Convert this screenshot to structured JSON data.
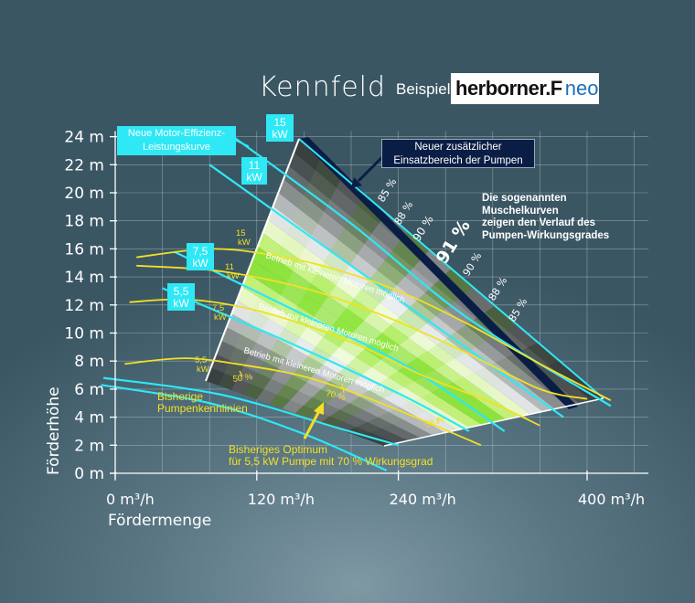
{
  "header": {
    "title": "Kennfeld",
    "subtitle": "Beispiel",
    "brand_main": "herborner.F",
    "brand_neo": "neo",
    "brand_colors": {
      "main": "#111111",
      "F": "#e2231a",
      "neo": "#1d6fb8"
    }
  },
  "chart_data": {
    "type": "line",
    "xlabel": "Fördermenge",
    "ylabel": "Förderhöhe",
    "x_unit": "m³/h",
    "y_unit": "m",
    "xlim": [
      0,
      420
    ],
    "ylim": [
      0,
      24
    ],
    "x_ticks": [
      0,
      120,
      240,
      400
    ],
    "x_tick_labels": [
      "0 m³/h",
      "120 m³/h",
      "240 m³/h",
      "400 m³/h"
    ],
    "y_ticks": [
      0,
      2,
      4,
      6,
      8,
      10,
      12,
      14,
      16,
      18,
      20,
      22,
      24
    ],
    "y_tick_labels": [
      "0 m",
      "2 m",
      "4 m",
      "6 m",
      "8 m",
      "10 m",
      "12 m",
      "14 m",
      "16 m",
      "18 m",
      "20 m",
      "22 m",
      "24 m"
    ],
    "grid": true,
    "colors": {
      "cyan": "#2ee8f5",
      "yellow": "#f2e025",
      "navy": "#0a1e45",
      "green": "#7ce632"
    },
    "efficiency_scale_low_to_high": [
      "#3a3f40",
      "#4b5153",
      "#646a6c",
      "#888d8e",
      "#b4b8b8",
      "#e0e4e4",
      "#e8f7c8",
      "#c2f07a",
      "#8ee23e"
    ],
    "bands": [
      {
        "x_left": [
          219,
          190,
          161,
          134,
          107,
          86
        ],
        "y_left": [
          24,
          20.5,
          17,
          14,
          11.5,
          9
        ],
        "x_right": [
          473,
          445,
          420,
          390,
          368,
          340
        ],
        "y_right": [
          5.6,
          5.3,
          5.1,
          4.8,
          4.5,
          4.2
        ],
        "stripes": [
          0,
          1,
          2,
          3,
          4,
          5,
          6,
          7,
          8,
          8,
          7,
          6,
          5,
          4,
          3,
          2,
          1,
          0
        ]
      }
    ],
    "series": [
      {
        "name": "15 kW",
        "x": [
          18,
          80,
          130,
          180,
          240,
          300,
          360,
          420
        ],
        "y": [
          15.4,
          16.0,
          15.6,
          14.7,
          13.0,
          10.6,
          7.8,
          5.2
        ]
      },
      {
        "name": "11 kW",
        "x": [
          18,
          80,
          130,
          180,
          240,
          300,
          360,
          400
        ],
        "y": [
          14.8,
          14.5,
          13.8,
          12.7,
          10.8,
          8.5,
          6.0,
          5.3
        ]
      },
      {
        "name": "7,5 kW",
        "x": [
          12,
          60,
          110,
          160,
          210,
          260,
          320,
          360
        ],
        "y": [
          12.2,
          12.4,
          11.8,
          10.6,
          9.0,
          7.0,
          5.0,
          3.4
        ]
      },
      {
        "name": "5,5 kW",
        "x": [
          8,
          60,
          110,
          160,
          210,
          260,
          310
        ],
        "y": [
          7.8,
          8.2,
          7.7,
          6.9,
          5.5,
          3.8,
          2.0
        ]
      }
    ],
    "cyan_curves": [
      {
        "x": [
          100,
          200,
          300,
          420
        ],
        "y": [
          24,
          17.8,
          11.0,
          4.8
        ]
      },
      {
        "x": [
          80,
          180,
          280,
          380
        ],
        "y": [
          22,
          16.0,
          10.0,
          4.0
        ]
      },
      {
        "x": [
          50,
          150,
          250,
          330
        ],
        "y": [
          15.8,
          11.7,
          7.5,
          3.0
        ]
      },
      {
        "x": [
          40,
          140,
          240,
          300
        ],
        "y": [
          13.2,
          9.6,
          5.7,
          3.0
        ]
      },
      {
        "x": [
          -10,
          90,
          190,
          240
        ],
        "y": [
          6.8,
          5.6,
          3.2,
          2.0
        ]
      },
      {
        "x": [
          -12,
          80,
          160,
          230
        ],
        "y": [
          6.3,
          5.0,
          2.8,
          0.2
        ]
      }
    ],
    "muschel_labels": [
      "85 %",
      "88 %",
      "90 %",
      "91 %",
      "90 %",
      "88 %",
      "85 %"
    ],
    "tags": {
      "yellow_tags": [
        "15 kW",
        "11 kW",
        "7,5 kW",
        "5,5 kW"
      ],
      "cyan_tags": [
        "15 kW",
        "11 kW",
        "7,5 kW",
        "5,5 kW"
      ],
      "point_labels": [
        "50 %",
        "70 %",
        "58 %"
      ]
    },
    "annotations": {
      "motor_curve": "Neue Motor-Effizienz-Leistungskurve",
      "new_range_line1": "Neuer zusätzlicher",
      "new_range_line2": "Einsatzbereich der Pumpen",
      "muschel_line1": "Die sogenannten",
      "muschel_line2": "Muschelkurven",
      "muschel_line3": "zeigen den Verlauf des",
      "muschel_line4": "Pumpen-Wirkungsgrades",
      "smaller_motor_1": "Betrieb mit kleineren Motoren möglich",
      "smaller_motor_2": "Betrieb mit kleineren Motoren möglich",
      "smaller_motor_3": "Betrieb mit kleineren Motoren möglich",
      "prev_curves_line1": "Bisherige",
      "prev_curves_line2": "Pumpenkennlinien",
      "prev_opt_line1": "Bisheriges Optimum",
      "prev_opt_line2": "für 5,5 kW Pumpe mit 70 % Wirkungsgrad"
    }
  }
}
